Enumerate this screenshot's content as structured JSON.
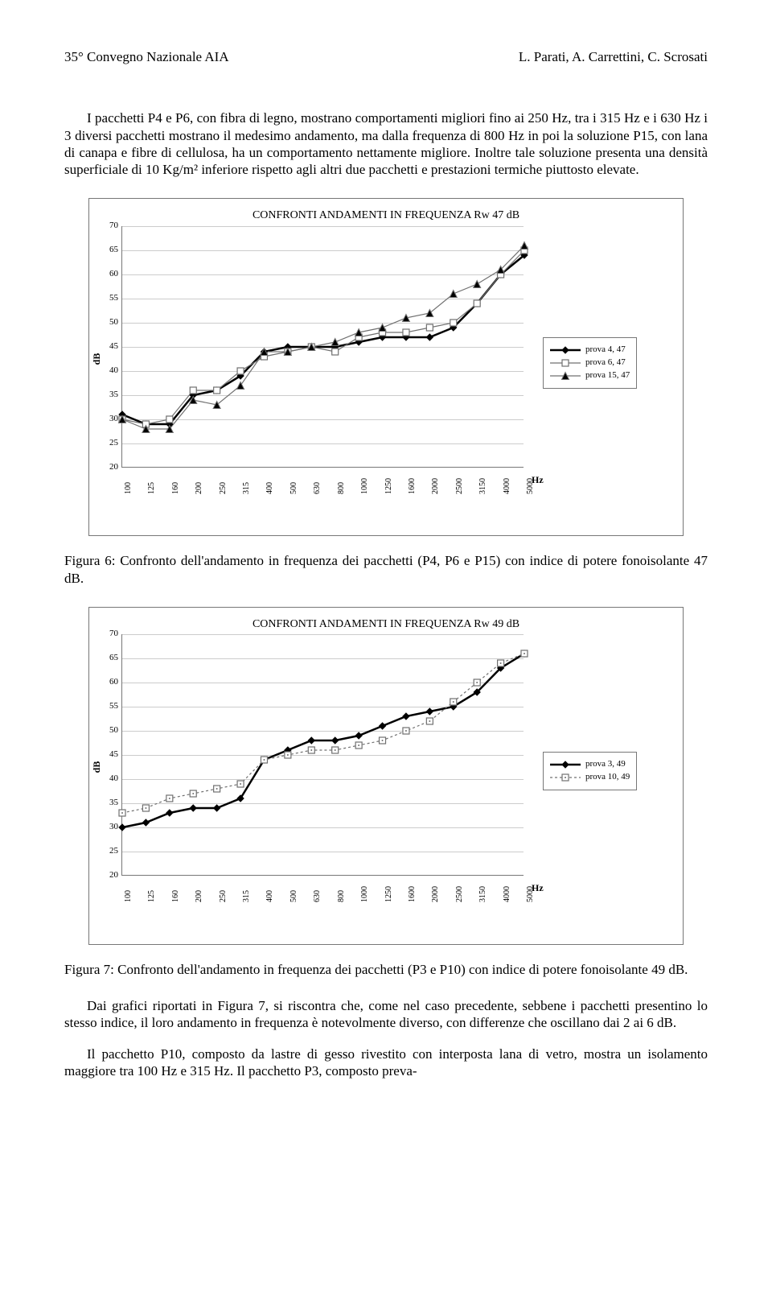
{
  "header": {
    "left": "35° Convegno Nazionale AIA",
    "right": "L. Parati, A. Carrettini, C. Scrosati"
  },
  "paragraphs": {
    "p1": "I pacchetti P4 e P6, con fibra di legno, mostrano comportamenti migliori fino ai 250 Hz, tra i 315 Hz e i 630 Hz i 3 diversi pacchetti mostrano il medesimo andamento, ma dalla frequenza di 800 Hz in poi la soluzione P15, con lana di canapa e fibre di cellulosa, ha un comportamento nettamente migliore. Inoltre tale soluzione presenta una densità superficiale di 10 Kg/m² inferiore rispetto agli altri due pacchetti e prestazioni termiche piuttosto elevate.",
    "p2": "Dai grafici riportati in Figura 7, si riscontra che, come nel caso precedente, sebbene i pacchetti presentino lo stesso indice, il loro andamento in frequenza è notevolmente diverso, con differenze che oscillano dai 2 ai 6 dB.",
    "p3": "Il pacchetto P10, composto da lastre di gesso rivestito con interposta lana di vetro, mostra un isolamento maggiore tra 100 Hz e 315 Hz. Il pacchetto P3, composto preva-"
  },
  "captions": {
    "fig6": "Figura 6: Confronto dell'andamento in frequenza dei pacchetti (P4, P6 e P15) con indice di potere fonoisolante 47 dB.",
    "fig7": "Figura 7: Confronto dell'andamento in frequenza dei pacchetti (P3 e P10) con indice di potere fonoisolante 49 dB."
  },
  "axis": {
    "yLabel": "dB",
    "xUnit": "Hz",
    "yMin": 20,
    "yMax": 70,
    "yStep": 5,
    "xCategories": [
      "100",
      "125",
      "160",
      "200",
      "250",
      "315",
      "400",
      "500",
      "630",
      "800",
      "1000",
      "1250",
      "1600",
      "2000",
      "2500",
      "3150",
      "4000",
      "5000"
    ]
  },
  "chart1": {
    "title": "CONFRONTI ANDAMENTI IN FREQUENZA Rw  47 dB",
    "series": [
      {
        "label": "prova 4, 47",
        "color": "#000000",
        "lineWidth": 2.5,
        "dash": "",
        "marker": "diamond",
        "markerFill": "#000000",
        "markerSize": 8,
        "values": [
          31,
          29,
          29,
          35,
          36,
          39,
          44,
          45,
          45,
          45,
          46,
          47,
          47,
          47,
          49,
          54,
          60,
          64
        ]
      },
      {
        "label": "prova 6, 47",
        "color": "#707070",
        "lineWidth": 1.2,
        "dash": "",
        "marker": "square",
        "markerFill": "#ffffff",
        "markerSize": 8,
        "values": [
          30,
          29,
          30,
          36,
          36,
          40,
          43,
          44,
          45,
          44,
          47,
          48,
          48,
          49,
          50,
          54,
          60,
          65
        ]
      },
      {
        "label": "prova 15, 47",
        "color": "#707070",
        "lineWidth": 1.2,
        "dash": "",
        "marker": "triangle",
        "markerFill": "#000000",
        "markerSize": 9,
        "values": [
          30,
          28,
          28,
          34,
          33,
          37,
          44,
          44,
          45,
          46,
          48,
          49,
          51,
          52,
          56,
          58,
          61,
          66
        ]
      }
    ]
  },
  "chart2": {
    "title": "CONFRONTI ANDAMENTI IN FREQUENZA Rw  49 dB",
    "series": [
      {
        "label": "prova 3, 49",
        "color": "#000000",
        "lineWidth": 2.5,
        "dash": "",
        "marker": "diamond",
        "markerFill": "#000000",
        "markerSize": 8,
        "values": [
          30,
          31,
          33,
          34,
          34,
          36,
          44,
          46,
          48,
          48,
          49,
          51,
          53,
          54,
          55,
          58,
          63,
          66
        ]
      },
      {
        "label": "prova 10, 49",
        "color": "#707070",
        "lineWidth": 1.2,
        "dash": "3,3",
        "marker": "square-dot",
        "markerFill": "#ffffff",
        "markerSize": 8,
        "values": [
          33,
          34,
          36,
          37,
          38,
          39,
          44,
          45,
          46,
          46,
          47,
          48,
          50,
          52,
          56,
          60,
          64,
          66
        ]
      }
    ]
  },
  "colors": {
    "grid": "#cccccc",
    "border": "#777777",
    "text": "#000000",
    "background": "#ffffff"
  }
}
